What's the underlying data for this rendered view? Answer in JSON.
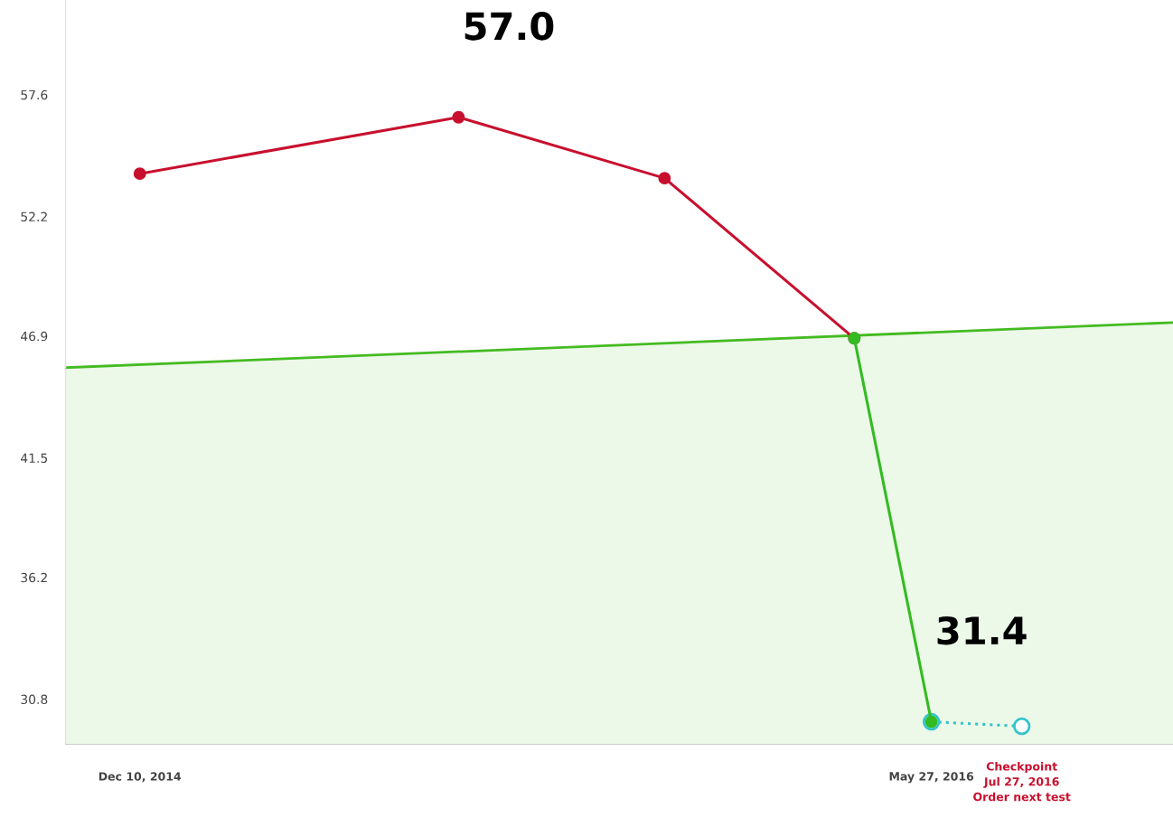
{
  "chart_data": {
    "type": "line",
    "ylim": [
      28.8,
      61.8
    ],
    "yticks": [
      30.8,
      36.2,
      41.5,
      46.9,
      52.2,
      57.6
    ],
    "xlim": [
      "2014-10-21",
      "2016-11-06"
    ],
    "xticks": [
      {
        "value": "2014-12-10",
        "label": "Dec 10, 2014"
      },
      {
        "value": "2016-05-27",
        "label": "May 27, 2016"
      }
    ],
    "grid": false,
    "series": [
      {
        "type": "area",
        "marker": "none",
        "color": "#44bb22",
        "x": [
          "2014-10-21",
          "2016-11-06"
        ],
        "values": [
          45.5,
          47.5
        ]
      },
      {
        "marker": "circle",
        "color": "#c8102e",
        "x": [
          "2014-12-10",
          "2015-07-13",
          "2015-11-29",
          "2016-04-05"
        ],
        "values": [
          54.1,
          56.6,
          53.9,
          46.8
        ]
      },
      {
        "marker": "circle",
        "color": "#33bb22",
        "x": [
          "2016-04-05",
          "2016-05-27"
        ],
        "values": [
          46.8,
          29.8
        ]
      },
      {
        "marker": "circle",
        "color": "#33c4cc",
        "line_style": "dotted",
        "x": [
          "2016-05-27",
          "2016-07-27"
        ],
        "values": [
          29.8,
          29.6
        ]
      }
    ],
    "annotations": [
      {
        "text": "57.0",
        "x": "2015-07-13",
        "y": 56.6
      },
      {
        "text": "31.4",
        "x": "2016-05-27",
        "y": 29.8
      },
      "Checkpoint\nJul 27, 2016\nOrder next test"
    ]
  }
}
